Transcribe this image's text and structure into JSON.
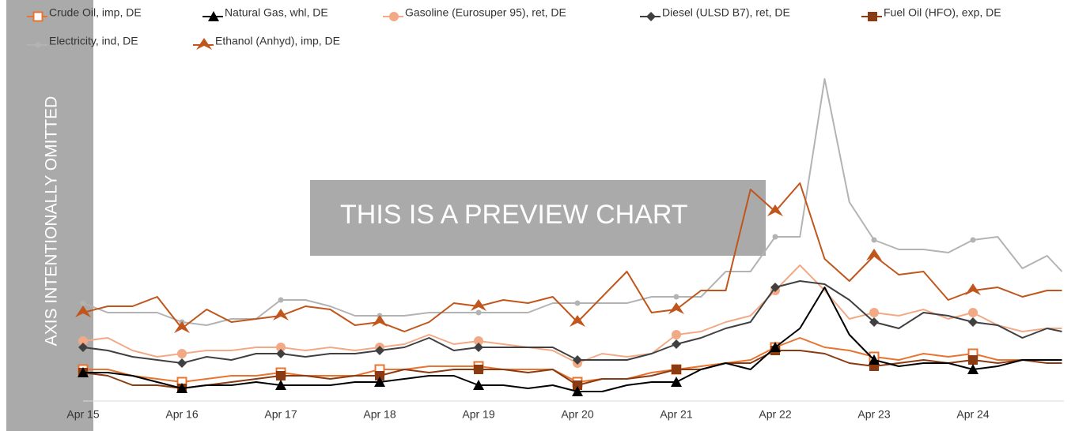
{
  "chart_data": {
    "type": "line",
    "annotations": [
      "AXIS INTENTIONALLY OMITTED",
      "THIS IS A PREVIEW CHART"
    ],
    "x": [
      0,
      0.25,
      0.5,
      0.75,
      1,
      1.25,
      1.5,
      1.75,
      2,
      2.25,
      2.5,
      2.75,
      3,
      3.25,
      3.5,
      3.75,
      4,
      4.25,
      4.5,
      4.75,
      5,
      5.25,
      5.5,
      5.75,
      6,
      6.25,
      6.5,
      6.75,
      7,
      7.25,
      7.5,
      7.75,
      8,
      8.25,
      8.5,
      8.75,
      9,
      9.25,
      9.5,
      9.75,
      9.9
    ],
    "xlim": [
      0,
      9.92
    ],
    "xticks": [
      {
        "value": 0,
        "label": "Apr 15"
      },
      {
        "value": 1,
        "label": "Apr 16"
      },
      {
        "value": 2,
        "label": "Apr 17"
      },
      {
        "value": 3,
        "label": "Apr 18"
      },
      {
        "value": 4,
        "label": "Apr 19"
      },
      {
        "value": 5,
        "label": "Apr 20"
      },
      {
        "value": 6,
        "label": "Apr 21"
      },
      {
        "value": 7,
        "label": "Apr 22"
      },
      {
        "value": 8,
        "label": "Apr 23"
      },
      {
        "value": 9,
        "label": "Apr 24"
      }
    ],
    "ylim": [
      0,
      105
    ],
    "series": [
      {
        "name": "Crude Oil, imp, DE",
        "color": "#e8742f",
        "marker": "square-open",
        "values": [
          10,
          10,
          8,
          7,
          6,
          7,
          8,
          8,
          9,
          8,
          8,
          8,
          10,
          10,
          11,
          11,
          11,
          10,
          10,
          10,
          6,
          7,
          7,
          9,
          10,
          11,
          12,
          13,
          17,
          20,
          17,
          16,
          14,
          13,
          15,
          14,
          15,
          13,
          13,
          13,
          13
        ]
      },
      {
        "name": "Natural Gas, whl, DE",
        "color": "#000000",
        "marker": "triangle",
        "values": [
          9,
          9,
          8,
          6,
          4,
          5,
          5,
          6,
          5,
          5,
          5,
          6,
          6,
          7,
          8,
          8,
          5,
          5,
          4,
          5,
          3,
          3,
          5,
          6,
          6,
          10,
          12,
          10,
          17,
          23,
          36,
          21,
          13,
          11,
          12,
          12,
          10,
          11,
          13,
          13,
          13
        ]
      },
      {
        "name": "Gasoline (Eurosuper 95), ret, DE",
        "color": "#f2aa86",
        "marker": "circle",
        "values": [
          19,
          20,
          16,
          14,
          15,
          16,
          16,
          17,
          17,
          16,
          17,
          16,
          17,
          18,
          21,
          18,
          19,
          18,
          17,
          16,
          12,
          15,
          14,
          15,
          21,
          22,
          25,
          27,
          35,
          43,
          35,
          26,
          28,
          27,
          29,
          26,
          28,
          24,
          22,
          23,
          23
        ]
      },
      {
        "name": "Diesel (ULSD B7), ret, DE",
        "color": "#404040",
        "marker": "diamond",
        "values": [
          17,
          16,
          14,
          13,
          12,
          14,
          13,
          15,
          15,
          14,
          15,
          15,
          16,
          17,
          20,
          16,
          17,
          17,
          17,
          17,
          13,
          13,
          13,
          15,
          18,
          20,
          23,
          25,
          36,
          38,
          37,
          32,
          25,
          23,
          28,
          27,
          25,
          24,
          20,
          23,
          22
        ]
      },
      {
        "name": "Fuel Oil (HFO), exp, DE",
        "color": "#8b3b12",
        "marker": "square",
        "values": [
          9,
          8,
          5,
          5,
          4,
          5,
          6,
          7,
          8,
          8,
          7,
          8,
          8,
          10,
          9,
          10,
          10,
          10,
          9,
          10,
          5,
          7,
          7,
          8,
          10,
          10,
          12,
          12,
          16,
          16,
          15,
          12,
          11,
          12,
          13,
          12,
          13,
          12,
          13,
          12,
          12
        ]
      },
      {
        "name": "Electricity, ind, DE",
        "color": "#b3b3b3",
        "marker": "dot",
        "values": [
          31,
          28,
          28,
          28,
          25,
          24,
          26,
          26,
          32,
          32,
          30,
          27,
          27,
          27,
          28,
          28,
          28,
          28,
          28,
          31,
          31,
          31,
          31,
          33,
          33,
          33,
          41,
          41,
          52,
          52,
          102,
          63,
          51,
          48,
          48,
          47,
          51,
          52,
          42,
          46,
          41
        ]
      },
      {
        "name": "Ethanol (Anhyd), imp, DE",
        "color": "#c0561b",
        "marker": "chevron",
        "values": [
          28,
          30,
          30,
          33,
          23,
          29,
          25,
          26,
          27,
          30,
          29,
          24,
          25,
          22,
          25,
          31,
          30,
          32,
          31,
          33,
          25,
          33,
          41,
          28,
          29,
          35,
          35,
          67,
          60,
          69,
          45,
          38,
          46,
          40,
          41,
          32,
          35,
          36,
          33,
          35,
          35
        ]
      }
    ]
  }
}
